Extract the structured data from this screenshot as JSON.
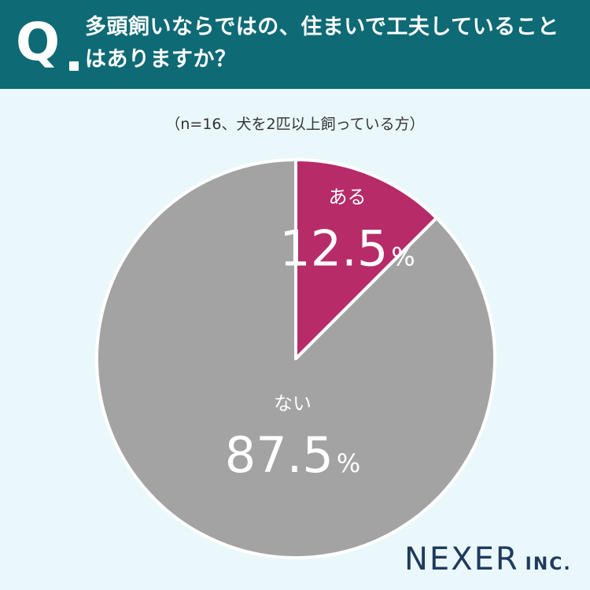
{
  "header": {
    "q_label": "Q",
    "question": "多頭飼いならではの、住まいで工夫していることはありますか？"
  },
  "sample_note": "（n=16、犬を2匹以上飼っている方）",
  "colors": {
    "header_bg": "#0e6a75",
    "slice_yes": "#b62b68",
    "slice_no": "#a3a3a3",
    "background": "#eaf8fb"
  },
  "chart_data": {
    "type": "pie",
    "title": "",
    "unit": "%",
    "slices": [
      {
        "label": "ある",
        "value": 12.5,
        "display": "12.5",
        "color": "#b62b68"
      },
      {
        "label": "ない",
        "value": 87.5,
        "display": "87.5",
        "color": "#a3a3a3"
      }
    ]
  },
  "logo": {
    "name": "NEXER",
    "suffix": "INC."
  }
}
